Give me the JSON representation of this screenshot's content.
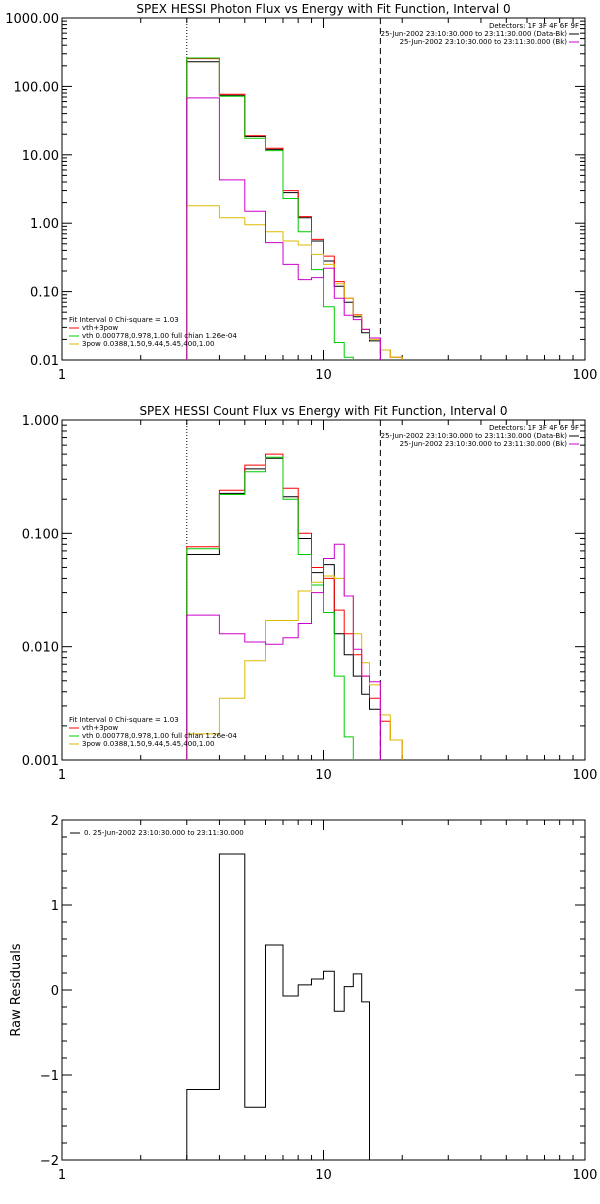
{
  "chart_data": [
    {
      "type": "line",
      "title": "SPEX HESSI Photon Flux vs Energy with Fit Function, Interval 0",
      "xscale": "log",
      "yscale": "log",
      "xlim": [
        1,
        100
      ],
      "ylim": [
        0.01,
        1000
      ],
      "x_ticks": [
        1,
        10,
        100
      ],
      "x_tick_labels": [
        "1",
        "10",
        "100"
      ],
      "y_ticks": [
        0.01,
        0.1,
        1,
        10,
        100,
        1000
      ],
      "y_tick_labels": [
        "0.01",
        "0.10",
        "1.00",
        "10.00",
        "100.00",
        "1000.00"
      ],
      "vlines": [
        {
          "x": 3.0,
          "style": "dotted"
        },
        {
          "x": 16.5,
          "style": "dashed"
        }
      ],
      "legend_top": {
        "header": "Detectors: 1F 3F 4F 6F 9F",
        "entries": [
          {
            "label": "25-Jun-2002 23:10:30.000 to 23:11:30.000 (Data-Bk)",
            "color": "#000000"
          },
          {
            "label": "25-Jun-2002 23:10:30.000 to 23:11:30.000 (Bk)",
            "color": "#cc00cc"
          }
        ]
      },
      "legend_bottom": {
        "header": "Fit Interval 0   Chi-square = 1.03",
        "entries": [
          {
            "label": "vth+3pow",
            "color": "#ff0000"
          },
          {
            "label": "vth 0.000778,0.978,1.00  full chian 1.26e-04",
            "color": "#00cc00"
          },
          {
            "label": "3pow 0.0388,1.50,9.44,5.45,400,1.00",
            "color": "#ddbb00"
          }
        ]
      },
      "bin_edges": [
        3,
        4,
        5,
        6,
        7,
        8,
        9,
        10,
        11,
        12,
        13,
        14,
        15,
        16.5,
        18,
        20
      ],
      "series": [
        {
          "key": "data-minus-bk",
          "color": "#000000",
          "values": [
            230,
            74,
            18.5,
            12,
            2.8,
            1.2,
            0.55,
            0.28,
            0.12,
            0.07,
            0.043,
            0.025,
            0.019,
            null,
            null
          ]
        },
        {
          "key": "fit-total",
          "color": "#ff0000",
          "values": [
            255,
            77,
            19,
            12.5,
            3.0,
            1.25,
            0.58,
            0.33,
            0.14,
            0.08,
            0.046,
            0.028,
            0.021,
            0.014,
            0.011
          ]
        },
        {
          "key": "fit-thermal",
          "color": "#00cc00",
          "values": [
            260,
            72,
            17.5,
            11.5,
            2.3,
            0.75,
            0.21,
            0.06,
            0.018,
            0.011,
            null,
            null,
            null,
            null,
            null
          ]
        },
        {
          "key": "fit-power",
          "color": "#ddbb00",
          "values": [
            1.8,
            1.2,
            0.95,
            0.75,
            0.55,
            0.48,
            0.35,
            0.25,
            0.13,
            0.08,
            0.045,
            0.028,
            0.02,
            0.014,
            0.011
          ]
        },
        {
          "key": "background",
          "color": "#cc00cc",
          "values": [
            68,
            4.3,
            1.5,
            0.52,
            0.25,
            0.15,
            0.16,
            0.22,
            0.08,
            0.045,
            0.039,
            0.028,
            0.021,
            null,
            null
          ]
        }
      ]
    },
    {
      "type": "line",
      "title": "SPEX HESSI Count Flux vs Energy with Fit Function, Interval 0",
      "xscale": "log",
      "yscale": "log",
      "xlim": [
        1,
        100
      ],
      "ylim": [
        0.001,
        1
      ],
      "x_ticks": [
        1,
        10,
        100
      ],
      "x_tick_labels": [
        "1",
        "10",
        "100"
      ],
      "y_ticks": [
        0.001,
        0.01,
        0.1,
        1
      ],
      "y_tick_labels": [
        "0.001",
        "0.010",
        "0.100",
        "1.000"
      ],
      "vlines": [
        {
          "x": 3.0,
          "style": "dotted"
        },
        {
          "x": 16.5,
          "style": "dashed"
        }
      ],
      "legend_top": {
        "header": "Detectors: 1F 3F 4F 6F 9F",
        "entries": [
          {
            "label": "25-Jun-2002 23:10:30.000 to 23:11:30.000 (Data-Bk)",
            "color": "#000000"
          },
          {
            "label": "25-Jun-2002 23:10:30.000 to 23:11:30.000 (Bk)",
            "color": "#cc00cc"
          }
        ]
      },
      "legend_bottom": {
        "header": "Fit Interval 0   Chi-square = 1.03",
        "entries": [
          {
            "label": "vth+3pow",
            "color": "#ff0000"
          },
          {
            "label": "vth 0.000778,0.978,1.00  full chian 1.26e-04",
            "color": "#00cc00"
          },
          {
            "label": "3pow 0.0388,1.50,9.44,5.45,400,1.00",
            "color": "#ddbb00"
          }
        ]
      },
      "bin_edges": [
        3,
        4,
        5,
        6,
        7,
        8,
        9,
        10,
        11,
        12,
        13,
        14,
        15,
        16.5,
        18,
        20
      ],
      "series": [
        {
          "key": "data-minus-bk",
          "color": "#000000",
          "values": [
            0.065,
            0.225,
            0.37,
            0.46,
            0.21,
            0.09,
            0.045,
            0.053,
            0.013,
            0.0085,
            0.0055,
            0.0038,
            0.0028,
            null,
            null
          ]
        },
        {
          "key": "fit-total",
          "color": "#ff0000",
          "values": [
            0.076,
            0.24,
            0.4,
            0.5,
            0.25,
            0.1,
            0.05,
            0.04,
            0.021,
            0.013,
            0.0085,
            0.0055,
            0.0035,
            0.0022,
            0.0015
          ]
        },
        {
          "key": "fit-thermal",
          "color": "#00cc00",
          "values": [
            0.073,
            0.22,
            0.35,
            0.47,
            0.2,
            0.065,
            0.035,
            0.02,
            0.0055,
            0.0016,
            null,
            null,
            null,
            null,
            null
          ]
        },
        {
          "key": "fit-power",
          "color": "#ddbb00",
          "values": [
            0.0017,
            0.0035,
            0.0075,
            0.017,
            0.017,
            0.031,
            0.037,
            0.042,
            0.04,
            0.028,
            0.013,
            0.0072,
            0.0046,
            0.0025,
            0.0015
          ]
        },
        {
          "key": "background",
          "color": "#cc00cc",
          "values": [
            0.019,
            0.013,
            0.011,
            0.0105,
            0.012,
            0.016,
            0.03,
            0.06,
            0.08,
            0.028,
            0.0095,
            0.0055,
            0.0049,
            null,
            null
          ]
        }
      ]
    },
    {
      "type": "line",
      "title": "",
      "xscale": "log",
      "yscale": "linear",
      "xlim": [
        1,
        100
      ],
      "ylim": [
        -2,
        2
      ],
      "ylabel": "Raw Residuals",
      "x_ticks": [
        1,
        10,
        100
      ],
      "x_tick_labels": [
        "1",
        "10",
        "100"
      ],
      "y_ticks": [
        -2,
        -1,
        0,
        1,
        2
      ],
      "y_tick_labels": [
        "−2",
        "−1",
        "0",
        "1",
        "2"
      ],
      "legend_top": {
        "header": "",
        "entries": [
          {
            "label": "0. 25-Jun-2002 23:10:30.000 to 23:11:30.000",
            "color": "#000000"
          }
        ]
      },
      "bin_edges": [
        3,
        4,
        5,
        6,
        7,
        8,
        9,
        10,
        11,
        12,
        13,
        14,
        15,
        16.5
      ],
      "series": [
        {
          "key": "residuals",
          "color": "#000000",
          "values": [
            -1.17,
            1.6,
            -1.38,
            0.53,
            -0.07,
            0.06,
            0.13,
            0.22,
            -0.25,
            0.04,
            0.19,
            -0.14,
            null
          ]
        }
      ]
    }
  ]
}
